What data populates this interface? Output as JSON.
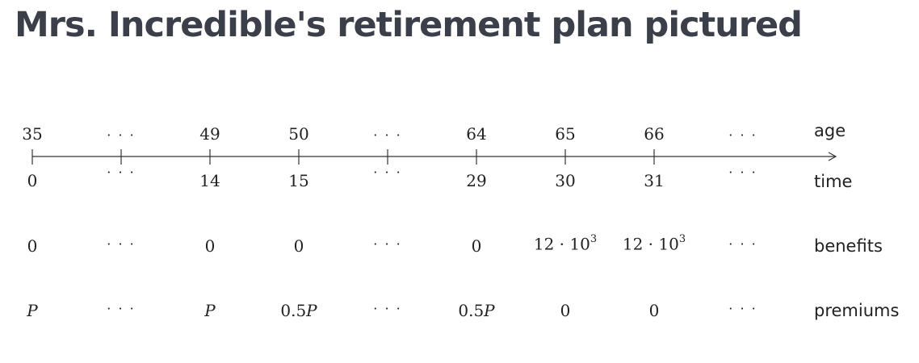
{
  "title": "Mrs. Incredible's retirement plan pictured",
  "labels": {
    "age": "age",
    "time": "time",
    "benefits": "benefits",
    "premiums": "premiums"
  },
  "ellipsis": "· · ·",
  "columns": [
    {
      "age": "35",
      "time": "0",
      "benefit": {
        "text": "0"
      },
      "premium": {
        "coef": "",
        "var": "P"
      }
    },
    {
      "age": "",
      "time": "",
      "benefit": {
        "text": ""
      },
      "premium": {
        "coef": "",
        "var": ""
      },
      "ellipsis": true
    },
    {
      "age": "49",
      "time": "14",
      "benefit": {
        "text": "0"
      },
      "premium": {
        "coef": "",
        "var": "P"
      }
    },
    {
      "age": "50",
      "time": "15",
      "benefit": {
        "text": "0"
      },
      "premium": {
        "coef": "0.5",
        "var": "P"
      }
    },
    {
      "age": "",
      "time": "",
      "benefit": {
        "text": ""
      },
      "premium": {
        "coef": "",
        "var": ""
      },
      "ellipsis": true
    },
    {
      "age": "64",
      "time": "29",
      "benefit": {
        "text": "0"
      },
      "premium": {
        "coef": "0.5",
        "var": "P"
      }
    },
    {
      "age": "65",
      "time": "30",
      "benefit": {
        "base": "12 · 10",
        "exp": "3"
      },
      "premium": {
        "coef": "0",
        "var": ""
      }
    },
    {
      "age": "66",
      "time": "31",
      "benefit": {
        "base": "12 · 10",
        "exp": "3"
      },
      "premium": {
        "coef": "0",
        "var": ""
      }
    },
    {
      "age": "",
      "time": "",
      "benefit": {
        "text": ""
      },
      "premium": {
        "coef": "",
        "var": ""
      },
      "ellipsis": true,
      "noTick": true
    }
  ]
}
